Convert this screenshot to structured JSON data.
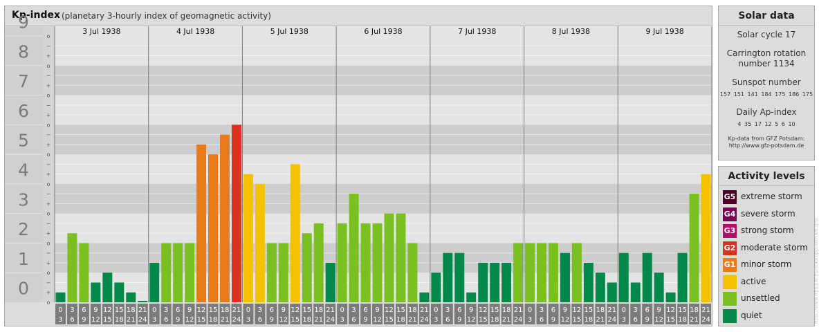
{
  "header": {
    "title": "Kp-index",
    "subtitle": "(planetary 3-hourly index of geomagnetic activity)"
  },
  "chart_data": {
    "type": "bar",
    "title": "Kp-index",
    "subtitle": "(planetary 3-hourly index of geomagnetic activity)",
    "ylim": [
      0,
      9
    ],
    "y_ticks": [
      "0",
      "1",
      "2",
      "3",
      "4",
      "5",
      "6",
      "7",
      "8",
      "9"
    ],
    "sub_ticks": [
      "+",
      "o",
      "−"
    ],
    "days": [
      "3 Jul 1938",
      "4 Jul 1938",
      "5 Jul 1938",
      "6 Jul 1938",
      "7 Jul 1938",
      "8 Jul 1938",
      "9 Jul 1938"
    ],
    "interval_labels": [
      [
        "0",
        "3"
      ],
      [
        "3",
        "6"
      ],
      [
        "6",
        "9"
      ],
      [
        "9",
        "12"
      ],
      [
        "12",
        "15"
      ],
      [
        "15",
        "18"
      ],
      [
        "18",
        "21"
      ],
      [
        "21",
        "24"
      ]
    ],
    "values": [
      0.333,
      2.333,
      2.0,
      0.667,
      1.0,
      0.667,
      0.333,
      0.0,
      1.333,
      2.0,
      2.0,
      2.0,
      5.333,
      5.0,
      5.667,
      6.0,
      4.333,
      4.0,
      2.0,
      2.0,
      4.667,
      2.333,
      2.667,
      1.333,
      2.667,
      3.667,
      2.667,
      2.667,
      3.0,
      3.0,
      2.0,
      0.333,
      1.0,
      1.667,
      1.667,
      0.333,
      1.333,
      1.333,
      1.333,
      2.0,
      2.0,
      2.0,
      2.0,
      1.667,
      2.0,
      1.333,
      1.0,
      0.667,
      1.667,
      0.667,
      1.667,
      1.0,
      0.333,
      1.667,
      3.667,
      4.333
    ],
    "grid": true
  },
  "solar": {
    "title": "Solar data",
    "cycle": "Solar cycle 17",
    "carrington_line1": "Carrington rotation",
    "carrington_line2": "number 1134",
    "sunspot_title": "Sunspot number",
    "sunspot_values": "157 151 141 184 175 186 175",
    "ap_title": "Daily Ap-index",
    "ap_values": "4 35 17 12 5 6 10",
    "credit_line1": "Kp-data from GFZ Potsdam:",
    "credit_line2": "http://www.gfz-potsdam.de"
  },
  "levels": {
    "title": "Activity levels",
    "items": [
      {
        "code": "G5",
        "label": "extreme storm",
        "color": "#4b0026"
      },
      {
        "code": "G4",
        "label": "severe storm",
        "color": "#7a0050"
      },
      {
        "code": "G3",
        "label": "strong storm",
        "color": "#b0106a"
      },
      {
        "code": "G2",
        "label": "moderate storm",
        "color": "#d83320"
      },
      {
        "code": "G1",
        "label": "minor storm",
        "color": "#e87a1a"
      },
      {
        "code": "",
        "label": "active",
        "color": "#f5c000"
      },
      {
        "code": "",
        "label": "unsettled",
        "color": "#79c020"
      },
      {
        "code": "",
        "label": "quiet",
        "color": "#00884a"
      }
    ]
  },
  "watermark": "http://www.ftpsolar.eu/solarapp/archive.php"
}
